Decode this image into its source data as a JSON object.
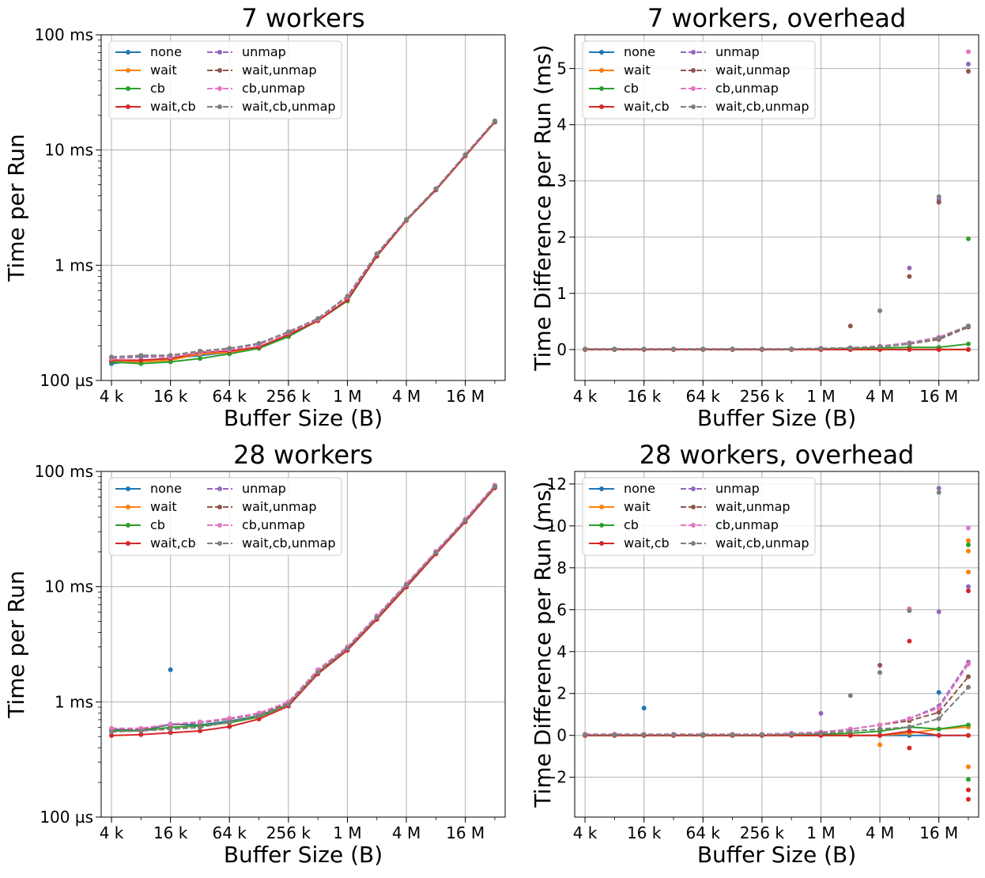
{
  "series_styles": [
    {
      "name": "none",
      "color": "#1f77b4",
      "dash": false
    },
    {
      "name": "wait",
      "color": "#ff7f0e",
      "dash": false
    },
    {
      "name": "cb",
      "color": "#2ca02c",
      "dash": false
    },
    {
      "name": "wait,cb",
      "color": "#d62728",
      "dash": false
    },
    {
      "name": "unmap",
      "color": "#9467bd",
      "dash": true
    },
    {
      "name": "wait,unmap",
      "color": "#8c564b",
      "dash": true
    },
    {
      "name": "cb,unmap",
      "color": "#e377c2",
      "dash": true
    },
    {
      "name": "wait,cb,unmap",
      "color": "#7f7f7f",
      "dash": true
    }
  ],
  "chart_data": [
    {
      "type": "line",
      "title": "7 workers",
      "xlabel": "Buffer Size (B)",
      "ylabel": "Time per Run",
      "xscale": "log2",
      "yscale": "log",
      "ylim": [
        "100 µs",
        "100 ms"
      ],
      "grid": true,
      "legend": "top-left",
      "x_ticks": [
        "4 k",
        "16 k",
        "64 k",
        "256 k",
        "1 M",
        "4 M",
        "16 M"
      ],
      "y_ticks": [
        "100 µs",
        "1 ms",
        "10 ms",
        "100 ms"
      ],
      "x": [
        "4 k",
        "8 k",
        "16 k",
        "32 k",
        "64 k",
        "128 k",
        "256 k",
        "512 k",
        "1 M",
        "2 M",
        "4 M",
        "8 M",
        "16 M",
        "32 M"
      ],
      "y_unit": "ms",
      "series": [
        {
          "name": "none",
          "values": [
            0.14,
            0.15,
            0.155,
            0.165,
            0.175,
            0.195,
            0.245,
            0.33,
            0.5,
            1.2,
            2.45,
            4.5,
            8.9,
            17.5
          ]
        },
        {
          "name": "wait",
          "values": [
            0.145,
            0.145,
            0.15,
            0.17,
            0.175,
            0.19,
            0.245,
            0.33,
            0.5,
            1.2,
            2.45,
            4.5,
            8.9,
            17.5
          ]
        },
        {
          "name": "cb",
          "values": [
            0.145,
            0.14,
            0.145,
            0.155,
            0.17,
            0.19,
            0.24,
            0.33,
            0.49,
            1.2,
            2.45,
            4.5,
            8.9,
            17.5
          ]
        },
        {
          "name": "wait,cb",
          "values": [
            0.15,
            0.15,
            0.155,
            0.175,
            0.18,
            0.195,
            0.25,
            0.33,
            0.5,
            1.2,
            2.45,
            4.5,
            8.9,
            17.5
          ]
        },
        {
          "name": "unmap",
          "values": [
            0.155,
            0.16,
            0.16,
            0.175,
            0.185,
            0.205,
            0.26,
            0.34,
            0.53,
            1.25,
            2.5,
            4.6,
            9.1,
            17.9
          ]
        },
        {
          "name": "wait,unmap",
          "values": [
            0.155,
            0.165,
            0.165,
            0.18,
            0.19,
            0.205,
            0.26,
            0.34,
            0.53,
            1.25,
            2.5,
            4.6,
            9.1,
            17.9
          ]
        },
        {
          "name": "cb,unmap",
          "values": [
            0.155,
            0.165,
            0.16,
            0.175,
            0.185,
            0.205,
            0.26,
            0.34,
            0.53,
            1.25,
            2.5,
            4.6,
            9.1,
            17.9
          ]
        },
        {
          "name": "wait,cb,unmap",
          "values": [
            0.16,
            0.165,
            0.165,
            0.18,
            0.19,
            0.21,
            0.265,
            0.345,
            0.54,
            1.26,
            2.5,
            4.6,
            9.1,
            17.9
          ]
        }
      ]
    },
    {
      "type": "line",
      "title": "7 workers, overhead",
      "xlabel": "Buffer Size (B)",
      "ylabel": "Time Difference per Run (ms)",
      "xscale": "log2",
      "yscale": "linear",
      "ylim": [
        -0.55,
        5.6
      ],
      "grid": true,
      "legend": "top-left",
      "x_ticks": [
        "4 k",
        "16 k",
        "64 k",
        "256 k",
        "1 M",
        "4 M",
        "16 M"
      ],
      "y_ticks": [
        "0",
        "1",
        "2",
        "3",
        "4",
        "5"
      ],
      "x": [
        "4 k",
        "8 k",
        "16 k",
        "32 k",
        "64 k",
        "128 k",
        "256 k",
        "512 k",
        "1 M",
        "2 M",
        "4 M",
        "8 M",
        "16 M",
        "32 M"
      ],
      "series": [
        {
          "name": "none",
          "values": [
            0,
            0,
            0,
            0,
            0,
            0,
            0,
            0,
            0,
            0,
            0,
            0,
            0,
            0
          ]
        },
        {
          "name": "wait",
          "values": [
            0,
            0,
            0,
            0,
            0,
            0,
            0,
            0,
            0,
            0,
            0,
            0,
            0,
            0
          ]
        },
        {
          "name": "cb",
          "values": [
            0,
            0,
            0,
            0,
            0,
            0,
            0,
            0,
            0.01,
            0.02,
            0.03,
            0.04,
            0.04,
            0.1
          ]
        },
        {
          "name": "wait,cb",
          "values": [
            0,
            0,
            0,
            0,
            0,
            0,
            0,
            0,
            0,
            0,
            0,
            0,
            0,
            0
          ]
        },
        {
          "name": "unmap",
          "values": [
            0.01,
            0.01,
            0.01,
            0.01,
            0.01,
            0.01,
            0.01,
            0.01,
            0.02,
            0.03,
            0.06,
            0.12,
            0.22,
            0.42
          ]
        },
        {
          "name": "wait,unmap",
          "values": [
            0.01,
            0.01,
            0.01,
            0.01,
            0.01,
            0.01,
            0.01,
            0.01,
            0.02,
            0.03,
            0.05,
            0.1,
            0.18,
            0.4
          ]
        },
        {
          "name": "cb,unmap",
          "values": [
            0.01,
            0.01,
            0.01,
            0.01,
            0.01,
            0.01,
            0.01,
            0.01,
            0.02,
            0.03,
            0.06,
            0.11,
            0.22,
            0.42
          ]
        },
        {
          "name": "wait,cb,unmap",
          "values": [
            0.01,
            0.01,
            0.01,
            0.01,
            0.01,
            0.01,
            0.01,
            0.01,
            0.02,
            0.03,
            0.05,
            0.1,
            0.2,
            0.42
          ]
        }
      ],
      "outliers": [
        {
          "series": "cb,unmap",
          "x": "32 M",
          "y": 5.3
        },
        {
          "series": "unmap",
          "x": "32 M",
          "y": 5.08
        },
        {
          "series": "wait,unmap",
          "x": "32 M",
          "y": 4.95
        },
        {
          "series": "cb",
          "x": "32 M",
          "y": 1.97
        },
        {
          "series": "wait,cb,unmap",
          "x": "16 M",
          "y": 2.72
        },
        {
          "series": "unmap",
          "x": "16 M",
          "y": 2.66
        },
        {
          "series": "wait,unmap",
          "x": "16 M",
          "y": 2.62
        },
        {
          "series": "unmap",
          "x": "8 M",
          "y": 1.45
        },
        {
          "series": "wait,unmap",
          "x": "8 M",
          "y": 1.3
        },
        {
          "series": "wait,cb,unmap",
          "x": "4 M",
          "y": 0.69
        },
        {
          "series": "wait,unmap",
          "x": "2 M",
          "y": 0.42
        }
      ]
    },
    {
      "type": "line",
      "title": "28 workers",
      "xlabel": "Buffer Size (B)",
      "ylabel": "Time per Run",
      "xscale": "log2",
      "yscale": "log",
      "ylim": [
        "100 µs",
        "100 ms"
      ],
      "grid": true,
      "legend": "top-left",
      "x_ticks": [
        "4 k",
        "16 k",
        "64 k",
        "256 k",
        "1 M",
        "4 M",
        "16 M"
      ],
      "y_ticks": [
        "100 µs",
        "1 ms",
        "10 ms",
        "100 ms"
      ],
      "x": [
        "4 k",
        "8 k",
        "16 k",
        "32 k",
        "64 k",
        "128 k",
        "256 k",
        "512 k",
        "1 M",
        "2 M",
        "4 M",
        "8 M",
        "16 M",
        "32 M"
      ],
      "y_unit": "ms",
      "series": [
        {
          "name": "none",
          "values": [
            0.58,
            0.56,
            0.64,
            0.63,
            0.68,
            0.76,
            0.95,
            1.8,
            2.9,
            5.3,
            10.2,
            19.5,
            37.0,
            73.0
          ]
        },
        {
          "name": "wait",
          "values": [
            0.56,
            0.56,
            0.6,
            0.62,
            0.66,
            0.74,
            0.95,
            1.8,
            2.85,
            5.3,
            10.0,
            19.3,
            37.0,
            73.0
          ]
        },
        {
          "name": "cb",
          "values": [
            0.56,
            0.56,
            0.6,
            0.62,
            0.66,
            0.74,
            0.95,
            1.8,
            2.85,
            5.3,
            10.0,
            19.3,
            37.0,
            73.0
          ]
        },
        {
          "name": "wait,cb",
          "values": [
            0.51,
            0.52,
            0.54,
            0.56,
            0.61,
            0.71,
            0.92,
            1.75,
            2.8,
            5.2,
            9.9,
            19.2,
            36.5,
            72.0
          ]
        },
        {
          "name": "unmap",
          "values": [
            0.58,
            0.58,
            0.64,
            0.67,
            0.72,
            0.8,
            1.0,
            1.9,
            3.0,
            5.6,
            10.6,
            20.2,
            38.5,
            76.0
          ]
        },
        {
          "name": "wait,unmap",
          "values": [
            0.58,
            0.58,
            0.63,
            0.66,
            0.71,
            0.79,
            0.98,
            1.85,
            2.95,
            5.5,
            10.5,
            20.0,
            38.0,
            75.0
          ]
        },
        {
          "name": "cb,unmap",
          "values": [
            0.59,
            0.59,
            0.64,
            0.67,
            0.72,
            0.8,
            1.0,
            1.9,
            3.0,
            5.6,
            10.6,
            20.2,
            38.5,
            76.0
          ]
        },
        {
          "name": "wait,cb,unmap",
          "values": [
            0.55,
            0.56,
            0.58,
            0.6,
            0.67,
            0.76,
            0.95,
            1.8,
            2.9,
            5.4,
            10.3,
            19.8,
            37.5,
            74.0
          ]
        }
      ],
      "outliers": [
        {
          "series": "none",
          "x": "16 k",
          "y": 1.9
        }
      ]
    },
    {
      "type": "line",
      "title": "28 workers, overhead",
      "xlabel": "Buffer Size (B)",
      "ylabel": "Time Difference per Run (ms)",
      "xscale": "log2",
      "yscale": "linear",
      "ylim": [
        -3.9,
        12.6
      ],
      "grid": true,
      "legend": "top-left",
      "x_ticks": [
        "4 k",
        "16 k",
        "64 k",
        "256 k",
        "1 M",
        "4 M",
        "16 M"
      ],
      "y_ticks": [
        "−2",
        "0",
        "2",
        "4",
        "6",
        "8",
        "10",
        "12"
      ],
      "x": [
        "4 k",
        "8 k",
        "16 k",
        "32 k",
        "64 k",
        "128 k",
        "256 k",
        "512 k",
        "1 M",
        "2 M",
        "4 M",
        "8 M",
        "16 M",
        "32 M"
      ],
      "series": [
        {
          "name": "none",
          "values": [
            0,
            0,
            0,
            0,
            0,
            0,
            0,
            0,
            0,
            0,
            0,
            0,
            0,
            0
          ]
        },
        {
          "name": "wait",
          "values": [
            0,
            0,
            0,
            0,
            0,
            0,
            0,
            0,
            0,
            0,
            0,
            0.1,
            0.3,
            0.4
          ]
        },
        {
          "name": "cb",
          "values": [
            0,
            0,
            0,
            0,
            0,
            0,
            0,
            0.05,
            0.05,
            0.1,
            0.2,
            0.4,
            0.3,
            0.5
          ]
        },
        {
          "name": "wait,cb",
          "values": [
            0,
            0,
            0,
            0,
            0,
            0,
            0,
            0,
            0,
            0,
            0,
            0.2,
            0,
            0
          ]
        },
        {
          "name": "unmap",
          "values": [
            0.05,
            0.05,
            0.05,
            0.05,
            0.05,
            0.05,
            0.05,
            0.1,
            0.15,
            0.3,
            0.5,
            0.8,
            1.4,
            3.5
          ]
        },
        {
          "name": "wait,unmap",
          "values": [
            0.05,
            0.05,
            0.05,
            0.05,
            0.05,
            0.05,
            0.05,
            0.1,
            0.15,
            0.3,
            0.5,
            0.7,
            1.1,
            2.8
          ]
        },
        {
          "name": "cb,unmap",
          "values": [
            0.05,
            0.05,
            0.05,
            0.05,
            0.05,
            0.05,
            0.05,
            0.1,
            0.15,
            0.3,
            0.5,
            0.8,
            1.3,
            3.4
          ]
        },
        {
          "name": "wait,cb,unmap",
          "values": [
            0.03,
            0.03,
            0.03,
            0.03,
            0.03,
            0.03,
            0.03,
            0.05,
            0.1,
            0.2,
            0.3,
            0.4,
            0.8,
            2.3
          ]
        }
      ],
      "outliers": [
        {
          "series": "unmap",
          "x": "16 M",
          "y": 11.8
        },
        {
          "series": "wait,cb,unmap",
          "x": "16 M",
          "y": 11.6
        },
        {
          "series": "cb,unmap",
          "x": "32 M",
          "y": 9.9
        },
        {
          "series": "wait",
          "x": "32 M",
          "y": 9.3
        },
        {
          "series": "cb",
          "x": "32 M",
          "y": 9.1
        },
        {
          "series": "wait",
          "x": "32 M",
          "y": 8.8
        },
        {
          "series": "wait",
          "x": "32 M",
          "y": 7.8
        },
        {
          "series": "unmap",
          "x": "32 M",
          "y": 7.1
        },
        {
          "series": "wait,cb",
          "x": "32 M",
          "y": 6.9
        },
        {
          "series": "cb,unmap",
          "x": "8 M",
          "y": 6.05
        },
        {
          "series": "wait,cb,unmap",
          "x": "8 M",
          "y": 5.95
        },
        {
          "series": "unmap",
          "x": "16 M",
          "y": 5.9
        },
        {
          "series": "wait,cb",
          "x": "8 M",
          "y": 4.5
        },
        {
          "series": "wait,unmap",
          "x": "4 M",
          "y": 3.35
        },
        {
          "series": "wait,cb,unmap",
          "x": "4 M",
          "y": 3.0
        },
        {
          "series": "none",
          "x": "16 M",
          "y": 2.05
        },
        {
          "series": "wait,cb,unmap",
          "x": "2 M",
          "y": 1.9
        },
        {
          "series": "none",
          "x": "16 k",
          "y": 1.3
        },
        {
          "series": "unmap",
          "x": "1 M",
          "y": 1.05
        },
        {
          "series": "wait,cb",
          "x": "32 M",
          "y": -3.05
        },
        {
          "series": "wait,cb",
          "x": "32 M",
          "y": -2.6
        },
        {
          "series": "cb",
          "x": "32 M",
          "y": -2.1
        },
        {
          "series": "wait",
          "x": "32 M",
          "y": -1.5
        },
        {
          "series": "wait,cb",
          "x": "8 M",
          "y": -0.6
        },
        {
          "series": "wait",
          "x": "4 M",
          "y": -0.45
        }
      ]
    }
  ]
}
